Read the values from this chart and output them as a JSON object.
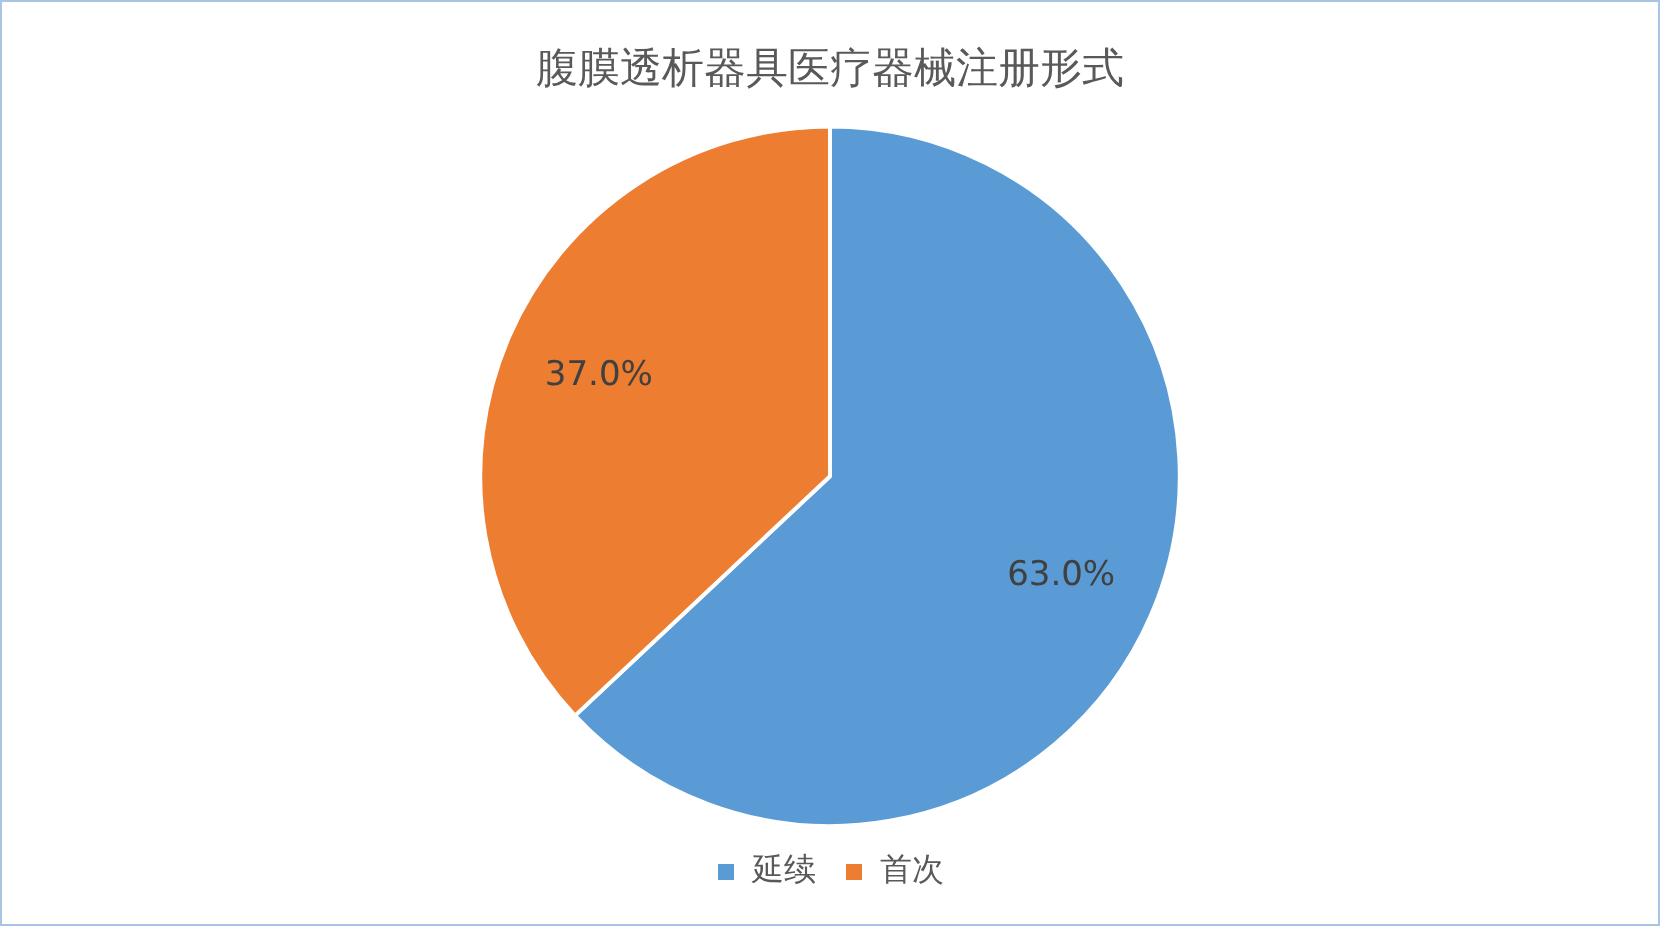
{
  "chart_data": {
    "type": "pie",
    "title": "腹膜透析器具医疗器械注册形式",
    "categories": [
      "延续",
      "首次"
    ],
    "values": [
      63,
      37
    ],
    "colors": [
      "#5b9bd5",
      "#ed7d31"
    ],
    "value_labels": [
      "63.0%",
      "37.0%"
    ],
    "legend": "bottom"
  }
}
